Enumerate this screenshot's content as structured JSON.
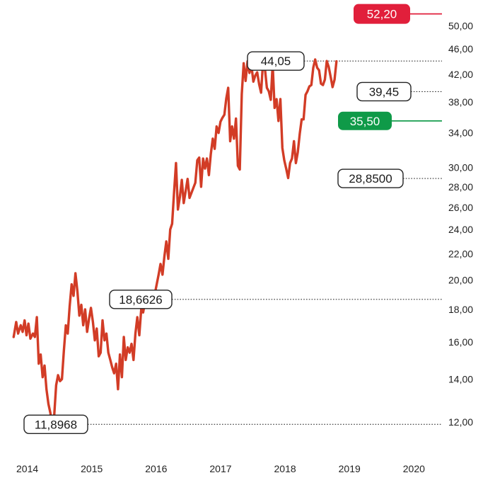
{
  "chart_data": {
    "type": "line",
    "title": "",
    "xlabel": "",
    "ylabel": "",
    "y_scale": "log",
    "ylim": [
      11.0,
      53.5
    ],
    "xlim": [
      2014.0,
      2020.65
    ],
    "grid": false,
    "x_ticks": [
      {
        "value": 2014,
        "label": "2014"
      },
      {
        "value": 2015,
        "label": "2015"
      },
      {
        "value": 2016,
        "label": "2016"
      },
      {
        "value": 2017,
        "label": "2017"
      },
      {
        "value": 2018,
        "label": "2018"
      },
      {
        "value": 2019,
        "label": "2019"
      },
      {
        "value": 2020,
        "label": "2020"
      }
    ],
    "y_ticks": [
      {
        "value": 12,
        "label": "12,00"
      },
      {
        "value": 14,
        "label": "14,00"
      },
      {
        "value": 16,
        "label": "16,00"
      },
      {
        "value": 18,
        "label": "18,00"
      },
      {
        "value": 20,
        "label": "20,00"
      },
      {
        "value": 22,
        "label": "22,00"
      },
      {
        "value": 24,
        "label": "24,00"
      },
      {
        "value": 26,
        "label": "26,00"
      },
      {
        "value": 28,
        "label": "28,00"
      },
      {
        "value": 30,
        "label": "30,00"
      },
      {
        "value": 34,
        "label": "34,00"
      },
      {
        "value": 38,
        "label": "38,00"
      },
      {
        "value": 42,
        "label": "42,00"
      },
      {
        "value": 46,
        "label": "46,00"
      },
      {
        "value": 50,
        "label": "50,00"
      }
    ],
    "series": [
      {
        "color": "#d23c26",
        "points": [
          [
            2013.97,
            16.3
          ],
          [
            2014.01,
            17.2
          ],
          [
            2014.04,
            16.5
          ],
          [
            2014.08,
            17.0
          ],
          [
            2014.11,
            16.6
          ],
          [
            2014.14,
            17.3
          ],
          [
            2014.17,
            16.4
          ],
          [
            2014.2,
            17.1
          ],
          [
            2014.23,
            16.2
          ],
          [
            2014.27,
            16.5
          ],
          [
            2014.3,
            16.3
          ],
          [
            2014.33,
            17.5
          ],
          [
            2014.36,
            14.8
          ],
          [
            2014.39,
            15.3
          ],
          [
            2014.42,
            14.1
          ],
          [
            2014.45,
            14.7
          ],
          [
            2014.48,
            13.5
          ],
          [
            2014.51,
            12.8
          ],
          [
            2014.54,
            12.4
          ],
          [
            2014.57,
            11.9
          ],
          [
            2014.6,
            12.3
          ],
          [
            2014.63,
            13.7
          ],
          [
            2014.66,
            14.2
          ],
          [
            2014.69,
            13.9
          ],
          [
            2014.72,
            14.0
          ],
          [
            2014.75,
            15.5
          ],
          [
            2014.78,
            17.0
          ],
          [
            2014.81,
            16.5
          ],
          [
            2014.84,
            18.2
          ],
          [
            2014.87,
            19.7
          ],
          [
            2014.9,
            18.9
          ],
          [
            2014.93,
            20.5
          ],
          [
            2014.96,
            19.2
          ],
          [
            2014.99,
            17.6
          ],
          [
            2015.02,
            18.3
          ],
          [
            2015.05,
            17.0
          ],
          [
            2015.08,
            18.0
          ],
          [
            2015.11,
            16.6
          ],
          [
            2015.14,
            17.4
          ],
          [
            2015.17,
            18.1
          ],
          [
            2015.2,
            17.2
          ],
          [
            2015.23,
            16.1
          ],
          [
            2015.26,
            16.8
          ],
          [
            2015.29,
            15.2
          ],
          [
            2015.32,
            15.4
          ],
          [
            2015.35,
            17.3
          ],
          [
            2015.38,
            16.1
          ],
          [
            2015.41,
            16.5
          ],
          [
            2015.44,
            15.4
          ],
          [
            2015.47,
            15.0
          ],
          [
            2015.5,
            14.6
          ],
          [
            2015.53,
            14.3
          ],
          [
            2015.56,
            14.8
          ],
          [
            2015.59,
            13.5
          ],
          [
            2015.62,
            15.3
          ],
          [
            2015.65,
            14.1
          ],
          [
            2015.68,
            16.3
          ],
          [
            2015.71,
            15.0
          ],
          [
            2015.74,
            15.7
          ],
          [
            2015.77,
            15.4
          ],
          [
            2015.8,
            15.9
          ],
          [
            2015.83,
            15.0
          ],
          [
            2015.86,
            16.5
          ],
          [
            2015.89,
            17.5
          ],
          [
            2015.92,
            16.4
          ],
          [
            2015.95,
            18.0
          ],
          [
            2015.98,
            17.8
          ],
          [
            2016.01,
            18.5
          ],
          [
            2016.04,
            18.7
          ],
          [
            2016.07,
            18.5
          ],
          [
            2016.1,
            19.2
          ],
          [
            2016.13,
            19.0
          ],
          [
            2016.16,
            19.0
          ],
          [
            2016.19,
            19.7
          ],
          [
            2016.22,
            20.4
          ],
          [
            2016.25,
            21.2
          ],
          [
            2016.28,
            20.4
          ],
          [
            2016.31,
            21.8
          ],
          [
            2016.34,
            23.0
          ],
          [
            2016.37,
            21.6
          ],
          [
            2016.4,
            24.0
          ],
          [
            2016.43,
            24.5
          ],
          [
            2016.46,
            27.5
          ],
          [
            2016.49,
            30.5
          ],
          [
            2016.52,
            25.8
          ],
          [
            2016.55,
            27.0
          ],
          [
            2016.58,
            28.7
          ],
          [
            2016.61,
            26.4
          ],
          [
            2016.64,
            27.6
          ],
          [
            2016.67,
            28.8
          ],
          [
            2016.7,
            26.9
          ],
          [
            2016.73,
            27.4
          ],
          [
            2016.76,
            27.9
          ],
          [
            2016.79,
            28.4
          ],
          [
            2016.82,
            30.8
          ],
          [
            2016.85,
            31.1
          ],
          [
            2016.88,
            28.0
          ],
          [
            2016.91,
            31.0
          ],
          [
            2016.94,
            29.9
          ],
          [
            2016.97,
            31.0
          ],
          [
            2017.0,
            29.2
          ],
          [
            2017.03,
            31.5
          ],
          [
            2017.06,
            33.3
          ],
          [
            2017.09,
            32.1
          ],
          [
            2017.12,
            34.8
          ],
          [
            2017.15,
            34.0
          ],
          [
            2017.18,
            35.4
          ],
          [
            2017.21,
            35.9
          ],
          [
            2017.24,
            36.3
          ],
          [
            2017.27,
            38.5
          ],
          [
            2017.3,
            40.0
          ],
          [
            2017.33,
            33.0
          ],
          [
            2017.36,
            34.8
          ],
          [
            2017.39,
            33.3
          ],
          [
            2017.42,
            35.8
          ],
          [
            2017.45,
            30.2
          ],
          [
            2017.48,
            29.8
          ],
          [
            2017.51,
            39.1
          ],
          [
            2017.54,
            43.7
          ],
          [
            2017.57,
            41.0
          ],
          [
            2017.6,
            44.0
          ],
          [
            2017.63,
            42.2
          ],
          [
            2017.66,
            43.4
          ],
          [
            2017.69,
            40.9
          ],
          [
            2017.72,
            41.8
          ],
          [
            2017.75,
            42.3
          ],
          [
            2017.78,
            40.5
          ],
          [
            2017.81,
            39.3
          ],
          [
            2017.84,
            43.8
          ],
          [
            2017.87,
            42.8
          ],
          [
            2017.9,
            40.0
          ],
          [
            2017.93,
            39.5
          ],
          [
            2017.96,
            38.3
          ],
          [
            2017.99,
            43.5
          ],
          [
            2018.02,
            37.2
          ],
          [
            2018.05,
            38.4
          ],
          [
            2018.08,
            35.5
          ],
          [
            2018.11,
            38.4
          ],
          [
            2018.14,
            32.2
          ],
          [
            2018.17,
            30.8
          ],
          [
            2018.2,
            29.9
          ],
          [
            2018.23,
            28.9
          ],
          [
            2018.26,
            30.5
          ],
          [
            2018.29,
            31.0
          ],
          [
            2018.32,
            33.0
          ],
          [
            2018.35,
            30.5
          ],
          [
            2018.38,
            31.7
          ],
          [
            2018.41,
            33.9
          ],
          [
            2018.44,
            35.7
          ],
          [
            2018.47,
            35.7
          ],
          [
            2018.5,
            39.0
          ],
          [
            2018.53,
            39.5
          ],
          [
            2018.56,
            40.2
          ],
          [
            2018.59,
            40.4
          ],
          [
            2018.62,
            43.0
          ],
          [
            2018.65,
            44.3
          ],
          [
            2018.68,
            43.0
          ],
          [
            2018.71,
            42.6
          ],
          [
            2018.74,
            40.6
          ],
          [
            2018.77,
            40.4
          ],
          [
            2018.8,
            41.2
          ],
          [
            2018.83,
            44.05
          ],
          [
            2018.86,
            43.1
          ],
          [
            2018.89,
            41.6
          ],
          [
            2018.92,
            40.1
          ],
          [
            2018.95,
            41.2
          ],
          [
            2018.98,
            44.0
          ]
        ]
      }
    ],
    "reference_lines": [
      {
        "value": 11.8968,
        "label": "11,8968",
        "style": "dotted",
        "kind": "callout-outline"
      },
      {
        "value": 18.6626,
        "label": "18,6626",
        "style": "dotted",
        "kind": "callout-outline"
      },
      {
        "value": 44.05,
        "label": "44,05",
        "style": "dotted",
        "kind": "callout-outline"
      },
      {
        "value": 39.45,
        "label": "39,45",
        "style": "dotted",
        "kind": "callout-outline"
      },
      {
        "value": 35.5,
        "label": "35,50",
        "style": "solid",
        "kind": "callout-green",
        "color": "#0f9a48"
      },
      {
        "value": 28.85,
        "label": "28,8500",
        "style": "dotted",
        "kind": "callout-outline"
      },
      {
        "value": 52.2,
        "label": "52,20",
        "style": "solid",
        "kind": "callout-red",
        "color": "#e11f3b"
      }
    ],
    "colors": {
      "line": "#d23c26",
      "target": "#e11f3b",
      "support": "#0f9a48",
      "text": "#222222",
      "dotted": "#333333"
    }
  }
}
